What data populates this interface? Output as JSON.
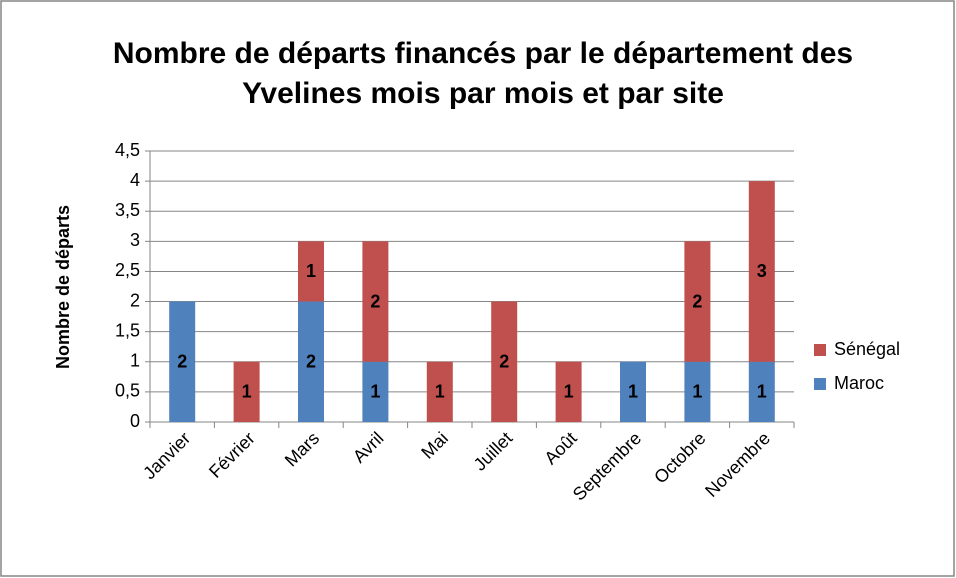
{
  "chart_data": {
    "type": "stacked_bar",
    "title": "Nombre de départs financés par le département des Yvelines mois par mois et par site",
    "y_label": "Nombre de départs",
    "categories": [
      "Janvier",
      "Février",
      "Mars",
      "Avril",
      "Mai",
      "Juillet",
      "Août",
      "Septembre",
      "Octobre",
      "Novembre"
    ],
    "series": [
      {
        "name": "Maroc",
        "color": "#4f81bd",
        "values": [
          2,
          null,
          2,
          1,
          null,
          null,
          null,
          1,
          1,
          1
        ]
      },
      {
        "name": "Sénégal",
        "color": "#c0504d",
        "values": [
          null,
          1,
          1,
          2,
          1,
          2,
          1,
          null,
          2,
          3
        ]
      }
    ],
    "ylim": [
      0,
      4.5
    ],
    "yticks": [
      0,
      {
        "value": 0.5,
        "label": "0,5"
      },
      1,
      {
        "value": 1.5,
        "label": "1,5"
      },
      2,
      {
        "value": 2.5,
        "label": "2,5"
      },
      3,
      {
        "value": 3.5,
        "label": "3,5"
      },
      4,
      {
        "value": 4.5,
        "label": "4,5"
      }
    ],
    "grid": true,
    "legend": "right"
  }
}
